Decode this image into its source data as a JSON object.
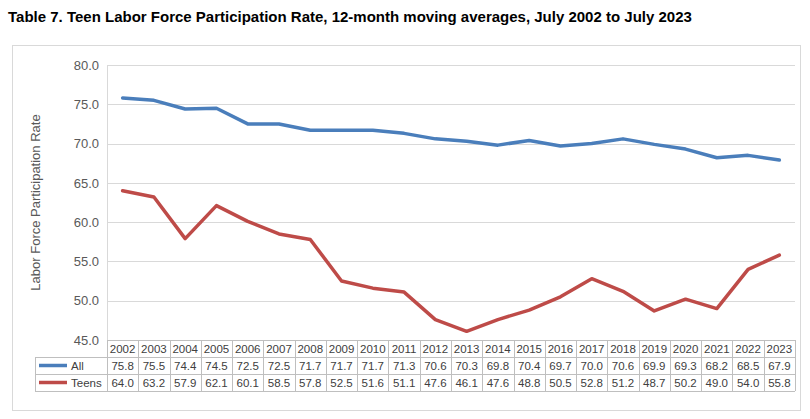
{
  "chart_data": {
    "type": "line",
    "title": "Table 7. Teen Labor Force Participation Rate, 12-month moving averages, July 2002 to July 2023",
    "y_label": "Labor Force Participation Rate",
    "categories": [
      "2002",
      "2003",
      "2004",
      "2005",
      "2006",
      "2007",
      "2008",
      "2009",
      "2010",
      "2011",
      "2012",
      "2013",
      "2014",
      "2015",
      "2016",
      "2017",
      "2018",
      "2019",
      "2020",
      "2021",
      "2022",
      "2023"
    ],
    "series": [
      {
        "name": "All",
        "color": "#4a7ebb",
        "values": [
          75.8,
          75.5,
          74.4,
          74.5,
          72.5,
          72.5,
          71.7,
          71.7,
          71.7,
          71.3,
          70.6,
          70.3,
          69.8,
          70.4,
          69.7,
          70.0,
          70.6,
          69.9,
          69.3,
          68.2,
          68.5,
          67.9
        ],
        "value_labels": [
          "75.8",
          "75.5",
          "74.4",
          "74.5",
          "72.5",
          "72.5",
          "71.7",
          "71.7",
          "71.7",
          "71.3",
          "70.6",
          "70.3",
          "69.8",
          "70.4",
          "69.7",
          "70.0",
          "70.6",
          "69.9",
          "69.3",
          "68.2",
          "68.5",
          "67.9"
        ]
      },
      {
        "name": "Teens",
        "color": "#be4b48",
        "values": [
          64.0,
          63.2,
          57.9,
          62.1,
          60.1,
          58.5,
          57.8,
          52.5,
          51.6,
          51.1,
          47.6,
          46.1,
          47.6,
          48.8,
          50.5,
          52.8,
          51.2,
          48.7,
          50.2,
          49.0,
          54.0,
          55.8
        ],
        "value_labels": [
          "64.0",
          "63.2",
          "57.9",
          "62.1",
          "60.1",
          "58.5",
          "57.8",
          "52.5",
          "51.6",
          "51.1",
          "47.6",
          "46.1",
          "47.6",
          "48.8",
          "50.5",
          "52.8",
          "51.2",
          "48.7",
          "50.2",
          "49.0",
          "54.0",
          "55.8"
        ]
      }
    ],
    "ylim": [
      45,
      80
    ],
    "yticks": [
      {
        "value": 45,
        "label": "45.0"
      },
      {
        "value": 50,
        "label": "50.0"
      },
      {
        "value": 55,
        "label": "55.0"
      },
      {
        "value": 60,
        "label": "60.0"
      },
      {
        "value": 65,
        "label": "65.0"
      },
      {
        "value": 70,
        "label": "70.0"
      },
      {
        "value": 75,
        "label": "75.0"
      },
      {
        "value": 80,
        "label": "80.0"
      }
    ],
    "grid": true,
    "data_labels": true
  }
}
